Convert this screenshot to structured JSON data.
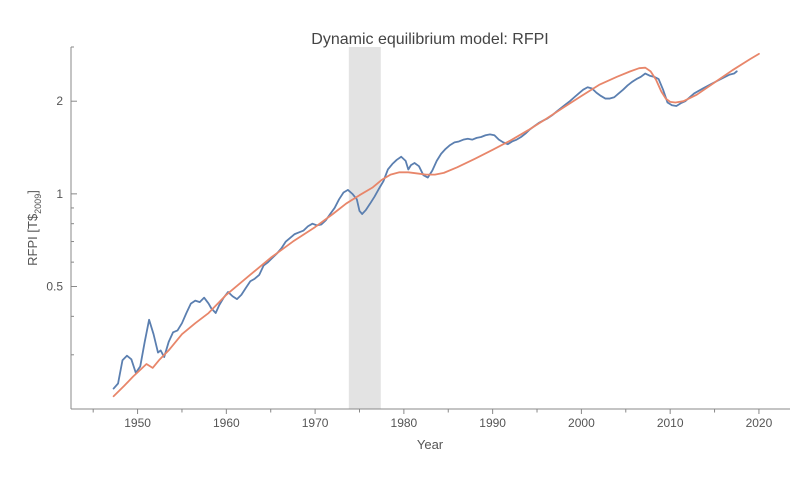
{
  "chart_data": {
    "type": "line",
    "title": "Dynamic equilibrium model: RFPI",
    "xlabel": "Year",
    "ylabel": {
      "base": "RFPI [T$",
      "sub": "2009",
      "close": "]"
    },
    "xlim": [
      1942.5,
      2023.5
    ],
    "ylim": [
      0.2,
      3.0
    ],
    "yscale": "log",
    "x_ticks": [
      1950,
      1960,
      1970,
      1980,
      1990,
      2000,
      2010,
      2020
    ],
    "x_tick_labels": [
      "1950",
      "1960",
      "1970",
      "1980",
      "1990",
      "2000",
      "2010",
      "2020"
    ],
    "y_ticks": [
      0.5,
      1,
      2
    ],
    "y_tick_labels": [
      "0.5",
      "1",
      "2"
    ],
    "grid": false,
    "legend": "none",
    "shaded_regions": [
      {
        "x0": 1973.8,
        "x1": 1977.4,
        "color": "#e3e3e3"
      }
    ],
    "series": [
      {
        "color": "#5b7fb0",
        "x": [
          1947.3,
          1947.8,
          1948.3,
          1948.8,
          1949.3,
          1949.8,
          1950.3,
          1950.8,
          1951.3,
          1951.8,
          1952.3,
          1952.6,
          1953.0,
          1953.5,
          1954.0,
          1954.5,
          1955.0,
          1955.5,
          1956.0,
          1956.5,
          1957.0,
          1957.5,
          1958.0,
          1958.3,
          1958.8,
          1959.2,
          1959.7,
          1960.2,
          1960.7,
          1961.2,
          1961.7,
          1962.2,
          1962.7,
          1963.2,
          1963.7,
          1964.2,
          1964.7,
          1965.2,
          1965.7,
          1966.2,
          1966.7,
          1967.2,
          1967.7,
          1968.2,
          1968.7,
          1969.2,
          1969.7,
          1970.2,
          1970.7,
          1971.2,
          1971.7,
          1972.2,
          1972.7,
          1973.2,
          1973.7,
          1974.2,
          1974.7,
          1975.0,
          1975.3,
          1975.7,
          1976.2,
          1976.7,
          1977.2,
          1977.7,
          1978.2,
          1978.7,
          1979.2,
          1979.7,
          1980.2,
          1980.5,
          1980.8,
          1981.2,
          1981.7,
          1982.2,
          1982.7,
          1983.2,
          1983.7,
          1984.2,
          1984.7,
          1985.2,
          1985.7,
          1986.2,
          1986.7,
          1987.2,
          1987.7,
          1988.2,
          1988.7,
          1989.2,
          1989.7,
          1990.2,
          1990.7,
          1991.2,
          1991.7,
          1992.2,
          1992.7,
          1993.2,
          1993.7,
          1994.2,
          1994.7,
          1995.2,
          1995.7,
          1996.2,
          1996.7,
          1997.2,
          1997.7,
          1998.2,
          1998.7,
          1999.2,
          1999.7,
          2000.2,
          2000.7,
          2001.2,
          2001.7,
          2002.2,
          2002.7,
          2003.2,
          2003.7,
          2004.2,
          2004.7,
          2005.2,
          2005.7,
          2006.2,
          2006.7,
          2007.2,
          2007.7,
          2008.2,
          2008.7,
          2009.2,
          2009.7,
          2010.2,
          2010.7,
          2011.2,
          2011.7,
          2012.2,
          2012.7,
          2013.2,
          2013.7,
          2014.2,
          2014.7,
          2015.2,
          2015.7,
          2016.2,
          2016.7,
          2017.2,
          2017.5
        ],
        "y": [
          0.233,
          0.242,
          0.288,
          0.298,
          0.29,
          0.262,
          0.275,
          0.33,
          0.39,
          0.35,
          0.305,
          0.31,
          0.295,
          0.33,
          0.355,
          0.36,
          0.38,
          0.41,
          0.44,
          0.45,
          0.445,
          0.46,
          0.44,
          0.425,
          0.41,
          0.435,
          0.46,
          0.48,
          0.465,
          0.455,
          0.47,
          0.495,
          0.52,
          0.53,
          0.545,
          0.585,
          0.6,
          0.62,
          0.64,
          0.665,
          0.7,
          0.72,
          0.74,
          0.75,
          0.76,
          0.785,
          0.8,
          0.79,
          0.795,
          0.82,
          0.86,
          0.9,
          0.96,
          1.01,
          1.03,
          1.0,
          0.96,
          0.88,
          0.86,
          0.885,
          0.93,
          0.98,
          1.04,
          1.1,
          1.2,
          1.25,
          1.29,
          1.32,
          1.28,
          1.2,
          1.24,
          1.26,
          1.23,
          1.15,
          1.13,
          1.19,
          1.28,
          1.35,
          1.4,
          1.44,
          1.47,
          1.48,
          1.5,
          1.51,
          1.5,
          1.52,
          1.53,
          1.55,
          1.56,
          1.55,
          1.5,
          1.47,
          1.45,
          1.48,
          1.5,
          1.53,
          1.57,
          1.62,
          1.66,
          1.7,
          1.73,
          1.76,
          1.8,
          1.85,
          1.9,
          1.95,
          2.0,
          2.06,
          2.12,
          2.18,
          2.22,
          2.2,
          2.13,
          2.08,
          2.04,
          2.04,
          2.06,
          2.12,
          2.18,
          2.25,
          2.31,
          2.36,
          2.4,
          2.46,
          2.42,
          2.4,
          2.36,
          2.18,
          1.98,
          1.94,
          1.93,
          1.97,
          2.0,
          2.06,
          2.12,
          2.16,
          2.2,
          2.24,
          2.28,
          2.32,
          2.36,
          2.4,
          2.44,
          2.46,
          2.5
        ]
      },
      {
        "color": "#e8866a",
        "x": [
          1947.3,
          1948.5,
          1949.5,
          1950.3,
          1951.0,
          1951.7,
          1952.5,
          1953.5,
          1955.0,
          1956.5,
          1958.0,
          1960.0,
          1962.5,
          1965.0,
          1967.5,
          1970.0,
          1972.0,
          1973.5,
          1975.0,
          1976.5,
          1977.5,
          1978.5,
          1979.5,
          1980.5,
          1981.5,
          1982.5,
          1983.5,
          1984.5,
          1986.0,
          1988.0,
          1990.0,
          1992.0,
          1994.0,
          1996.0,
          1998.0,
          2000.0,
          2002.0,
          2004.0,
          2005.5,
          2006.5,
          2007.2,
          2007.8,
          2008.4,
          2009.0,
          2009.5,
          2010.0,
          2010.6,
          2011.5,
          2013.0,
          2015.0,
          2017.0,
          2019.0,
          2020.0
        ],
        "y": [
          0.22,
          0.238,
          0.255,
          0.268,
          0.28,
          0.272,
          0.29,
          0.31,
          0.35,
          0.38,
          0.41,
          0.47,
          0.54,
          0.62,
          0.7,
          0.78,
          0.86,
          0.93,
          0.99,
          1.05,
          1.11,
          1.155,
          1.175,
          1.175,
          1.165,
          1.155,
          1.155,
          1.17,
          1.22,
          1.3,
          1.39,
          1.49,
          1.61,
          1.75,
          1.91,
          2.08,
          2.26,
          2.4,
          2.5,
          2.56,
          2.57,
          2.5,
          2.35,
          2.15,
          2.04,
          1.99,
          1.98,
          2.0,
          2.1,
          2.3,
          2.52,
          2.74,
          2.85
        ]
      }
    ]
  }
}
